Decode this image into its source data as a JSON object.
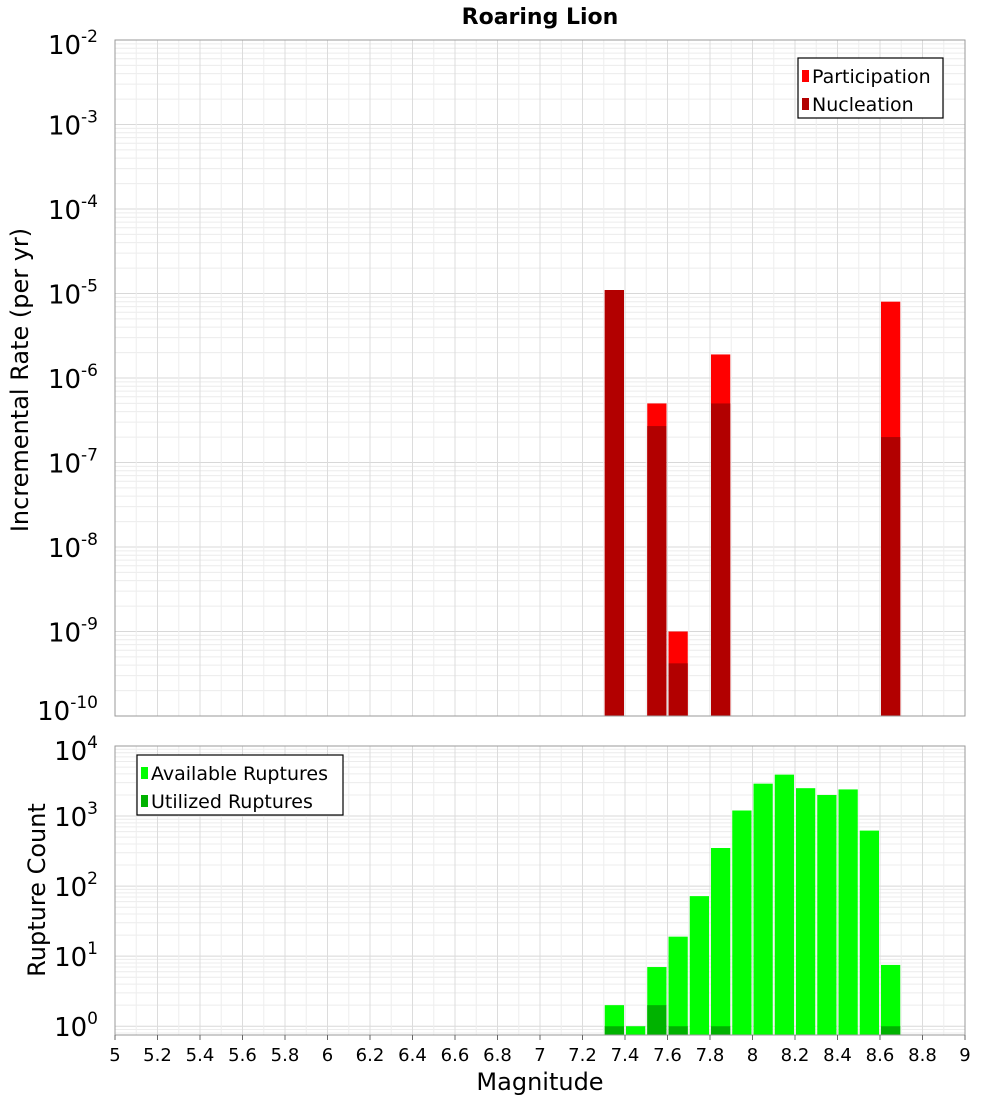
{
  "chart_data": [
    {
      "type": "bar",
      "title": "Roaring Lion",
      "ylabel": "Incremental Rate (per yr)",
      "xlabel": "",
      "y_scale": "log",
      "ylim": [
        1e-10,
        0.01
      ],
      "y_ticks": [
        {
          "base": "10",
          "exp": "-2"
        },
        {
          "base": "10",
          "exp": "-3"
        },
        {
          "base": "10",
          "exp": "-4"
        },
        {
          "base": "10",
          "exp": "-5"
        },
        {
          "base": "10",
          "exp": "-6"
        },
        {
          "base": "10",
          "exp": "-7"
        },
        {
          "base": "10",
          "exp": "-8"
        },
        {
          "base": "10",
          "exp": "-9"
        },
        {
          "base": "10",
          "exp": "-10"
        }
      ],
      "xlim": [
        5,
        9
      ],
      "bar_width": 0.1,
      "grid": true,
      "legend_position": "top-right",
      "legend": [
        "Participation",
        "Nucleation"
      ],
      "colors": {
        "Participation": "#ff0000",
        "Nucleation": "#b20000"
      },
      "series": [
        {
          "name": "Participation",
          "x": [
            7.35,
            7.55,
            7.65,
            7.85,
            8.65
          ],
          "values": [
            1.1e-05,
            5e-07,
            1e-09,
            1.9e-06,
            8e-06
          ]
        },
        {
          "name": "Nucleation",
          "x": [
            7.35,
            7.55,
            7.65,
            7.85,
            8.65
          ],
          "values": [
            1.1e-05,
            2.7e-07,
            4.2e-10,
            5e-07,
            2e-07
          ]
        }
      ]
    },
    {
      "type": "bar",
      "title": "",
      "ylabel": "Rupture Count",
      "xlabel": "Magnitude",
      "y_scale": "log",
      "ylim": [
        0.75,
        10000
      ],
      "y_ticks": [
        {
          "value": 10000,
          "base": "10",
          "exp": "4"
        },
        {
          "value": 1000,
          "base": "10",
          "exp": "3"
        },
        {
          "value": 100,
          "base": "10",
          "exp": "2"
        },
        {
          "value": 10,
          "base": "10",
          "exp": "1"
        },
        {
          "value": 1,
          "base": "10",
          "exp": "0"
        }
      ],
      "xlim": [
        5,
        9
      ],
      "x_ticks": [
        "5",
        "5.2",
        "5.4",
        "5.6",
        "5.8",
        "6",
        "6.2",
        "6.4",
        "6.6",
        "6.8",
        "7",
        "7.2",
        "7.4",
        "7.6",
        "7.8",
        "8",
        "8.2",
        "8.4",
        "8.6",
        "8.8",
        "9"
      ],
      "bar_width": 0.1,
      "grid": true,
      "legend_position": "top-left",
      "legend": [
        "Available Ruptures",
        "Utilized Ruptures"
      ],
      "colors": {
        "Available Ruptures": "#00ff00",
        "Utilized Ruptures": "#00b200"
      },
      "series": [
        {
          "name": "Available Ruptures",
          "x": [
            7.35,
            7.45,
            7.55,
            7.65,
            7.75,
            7.85,
            7.95,
            8.05,
            8.15,
            8.25,
            8.35,
            8.45,
            8.55,
            8.65
          ],
          "values": [
            2,
            1,
            7,
            19,
            72,
            350,
            1200,
            2900,
            3900,
            2500,
            2000,
            2400,
            620,
            7.5
          ]
        },
        {
          "name": "Utilized Ruptures",
          "x": [
            7.35,
            7.55,
            7.65,
            7.85,
            8.65
          ],
          "values": [
            1,
            2,
            1,
            1,
            1
          ]
        }
      ]
    }
  ]
}
